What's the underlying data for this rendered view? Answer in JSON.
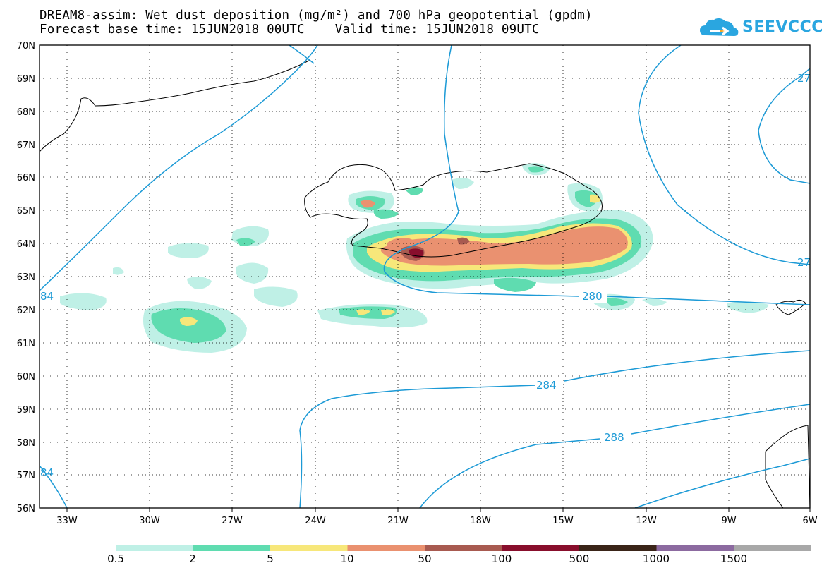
{
  "title": {
    "line1": "DREAM8-assim: Wet dust deposition (mg/m²) and 700 hPa geopotential (gpdm)",
    "line2": "Forecast base time: 15JUN2018 00UTC    Valid time: 15JUN2018 09UTC"
  },
  "logo": {
    "text": "SEEVCCC",
    "icon": "cloud-arrow-icon",
    "color": "#2aa6e0"
  },
  "map": {
    "lon_range": [
      -34.5,
      -6
    ],
    "lat_range": [
      56,
      70
    ],
    "lon_ticks": [
      "33W",
      "30W",
      "27W",
      "24W",
      "21W",
      "18W",
      "15W",
      "12W",
      "9W",
      "6W"
    ],
    "lat_ticks": [
      "70N",
      "69N",
      "68N",
      "67N",
      "66N",
      "65N",
      "64N",
      "63N",
      "62N",
      "61N",
      "60N",
      "59N",
      "58N",
      "57N",
      "56N"
    ],
    "grid": true,
    "contour_color": "#1c9ad6",
    "contour_labels": [
      "280",
      "284",
      "288",
      "84",
      "84",
      "27",
      "27"
    ]
  },
  "legend": {
    "colors": [
      "#bff0e6",
      "#5fdcb0",
      "#f7e77a",
      "#ea9170",
      "#a85a50",
      "#880e2c",
      "#3a2418",
      "#8c6aa0",
      "#a8a8a8"
    ],
    "labels": [
      "0.5",
      "2",
      "5",
      "10",
      "50",
      "100",
      "500",
      "1000",
      "1500"
    ]
  }
}
